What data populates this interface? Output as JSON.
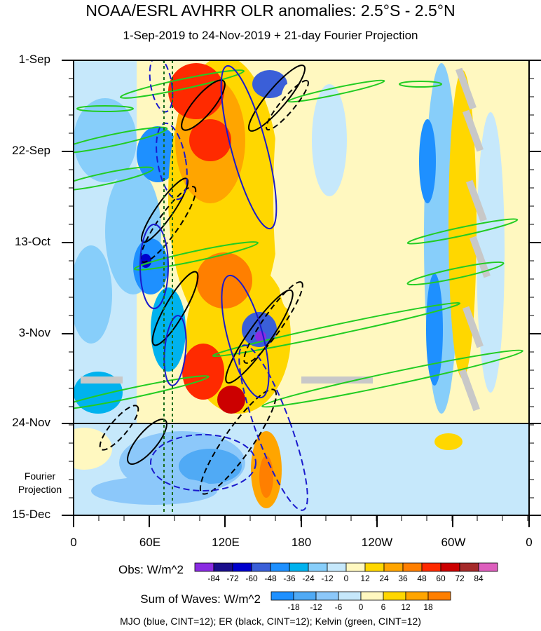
{
  "chart_data": {
    "type": "heatmap",
    "title": "NOAA/ESRL AVHRR OLR anomalies: 2.5°S - 2.5°N",
    "subtitle": "1-Sep-2019 to 24-Nov-2019 + 21-day Fourier Projection",
    "y_ticks": [
      "1-Sep",
      "22-Sep",
      "13-Oct",
      "3-Nov",
      "24-Nov",
      "15-Dec"
    ],
    "x_ticks": [
      "0",
      "60E",
      "120E",
      "180",
      "120W",
      "60W",
      "0"
    ],
    "projection_label": "Fourier Projection",
    "obs_colorbar": {
      "title": "Obs: W/m^2",
      "levels": [
        "-84",
        "-72",
        "-60",
        "-48",
        "-36",
        "-24",
        "-12",
        "0",
        "12",
        "24",
        "36",
        "48",
        "60",
        "72",
        "84"
      ],
      "colors": [
        "#8a2be2",
        "#1a0e8c",
        "#0000cd",
        "#3a5fd8",
        "#1e90ff",
        "#00b2ee",
        "#87cefa",
        "#c6e8fb",
        "#fff8c0",
        "#ffd700",
        "#ffa500",
        "#ff7f00",
        "#ff2a00",
        "#cc0000",
        "#a52a2a",
        "#dd5fbd"
      ]
    },
    "waves_colorbar": {
      "title": "Sum of Waves: W/m^2",
      "levels": [
        "-18",
        "-12",
        "-6",
        "0",
        "6",
        "12",
        "18"
      ],
      "colors": [
        "#1e90ff",
        "#50aaf5",
        "#8cc8fa",
        "#c6e8fb",
        "#fff8c0",
        "#ffd700",
        "#ffa500",
        "#ff7f00"
      ]
    },
    "contour_legend": "MJO (blue, CINT=12); ER (black, CINT=12); Kelvin (green, CINT=12)",
    "series_colors": {
      "MJO": "#1a1acd",
      "ER": "#000000",
      "Kelvin": "#22cc22",
      "missing": "#c8c8c8"
    }
  }
}
